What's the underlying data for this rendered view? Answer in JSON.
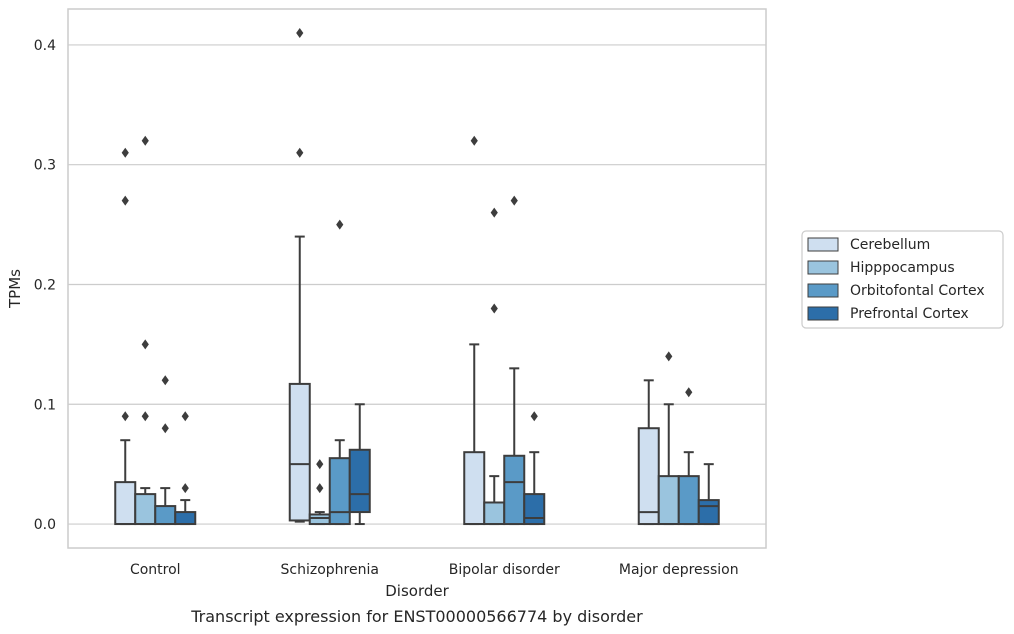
{
  "chart_data": {
    "type": "box",
    "caption": "Transcript expression for ENST00000566774 by disorder",
    "xlabel": "Disorder",
    "ylabel": "TPMs",
    "ylim": [
      -0.02,
      0.43
    ],
    "yticks": [
      "0.0",
      "0.1",
      "0.2",
      "0.3",
      "0.4"
    ],
    "grid": true,
    "legend_position": "right",
    "categories": [
      "Control",
      "Schizophrenia",
      "Bipolar disorder",
      "Major depression"
    ],
    "series": [
      {
        "name": "Cerebellum",
        "color": "#cfdff0",
        "boxes": [
          {
            "min": 0,
            "q1": 0,
            "median": 0,
            "q3": 0.035,
            "max": 0.07,
            "outliers": [
              0.09,
              0.27,
              0.31
            ]
          },
          {
            "min": 0.002,
            "q1": 0.003,
            "median": 0.05,
            "q3": 0.117,
            "max": 0.24,
            "outliers": [
              0.31,
              0.41
            ]
          },
          {
            "min": 0,
            "q1": 0,
            "median": 0,
            "q3": 0.06,
            "max": 0.15,
            "outliers": [
              0.32
            ]
          },
          {
            "min": 0,
            "q1": 0,
            "median": 0.01,
            "q3": 0.08,
            "max": 0.12,
            "outliers": []
          }
        ]
      },
      {
        "name": "Hipppocampus",
        "color": "#9ac4de",
        "boxes": [
          {
            "min": 0,
            "q1": 0,
            "median": 0,
            "q3": 0.025,
            "max": 0.03,
            "outliers": [
              0.09,
              0.15,
              0.32
            ]
          },
          {
            "min": 0,
            "q1": 0,
            "median": 0.005,
            "q3": 0.008,
            "max": 0.01,
            "outliers": [
              0.03,
              0.05
            ]
          },
          {
            "min": 0,
            "q1": 0,
            "median": 0,
            "q3": 0.018,
            "max": 0.04,
            "outliers": [
              0.18,
              0.26
            ]
          },
          {
            "min": 0,
            "q1": 0,
            "median": 0,
            "q3": 0.04,
            "max": 0.1,
            "outliers": [
              0.14
            ]
          }
        ]
      },
      {
        "name": "Orbitofontal Cortex",
        "color": "#5a9ac7",
        "boxes": [
          {
            "min": 0,
            "q1": 0,
            "median": 0,
            "q3": 0.015,
            "max": 0.03,
            "outliers": [
              0.08,
              0.12
            ]
          },
          {
            "min": 0,
            "q1": 0,
            "median": 0.01,
            "q3": 0.055,
            "max": 0.07,
            "outliers": [
              0.25
            ]
          },
          {
            "min": 0,
            "q1": 0,
            "median": 0.035,
            "q3": 0.057,
            "max": 0.13,
            "outliers": [
              0.27
            ]
          },
          {
            "min": 0,
            "q1": 0,
            "median": 0,
            "q3": 0.04,
            "max": 0.06,
            "outliers": [
              0.11
            ]
          }
        ]
      },
      {
        "name": "Prefrontal Cortex",
        "color": "#2c6ea9",
        "boxes": [
          {
            "min": 0,
            "q1": 0,
            "median": 0,
            "q3": 0.01,
            "max": 0.02,
            "outliers": [
              0.03,
              0.09
            ]
          },
          {
            "min": 0,
            "q1": 0.01,
            "median": 0.025,
            "q3": 0.062,
            "max": 0.1,
            "outliers": []
          },
          {
            "min": 0,
            "q1": 0,
            "median": 0.005,
            "q3": 0.025,
            "max": 0.06,
            "outliers": [
              0.09
            ]
          },
          {
            "min": 0,
            "q1": 0,
            "median": 0.015,
            "q3": 0.02,
            "max": 0.05,
            "outliers": []
          }
        ]
      }
    ]
  }
}
